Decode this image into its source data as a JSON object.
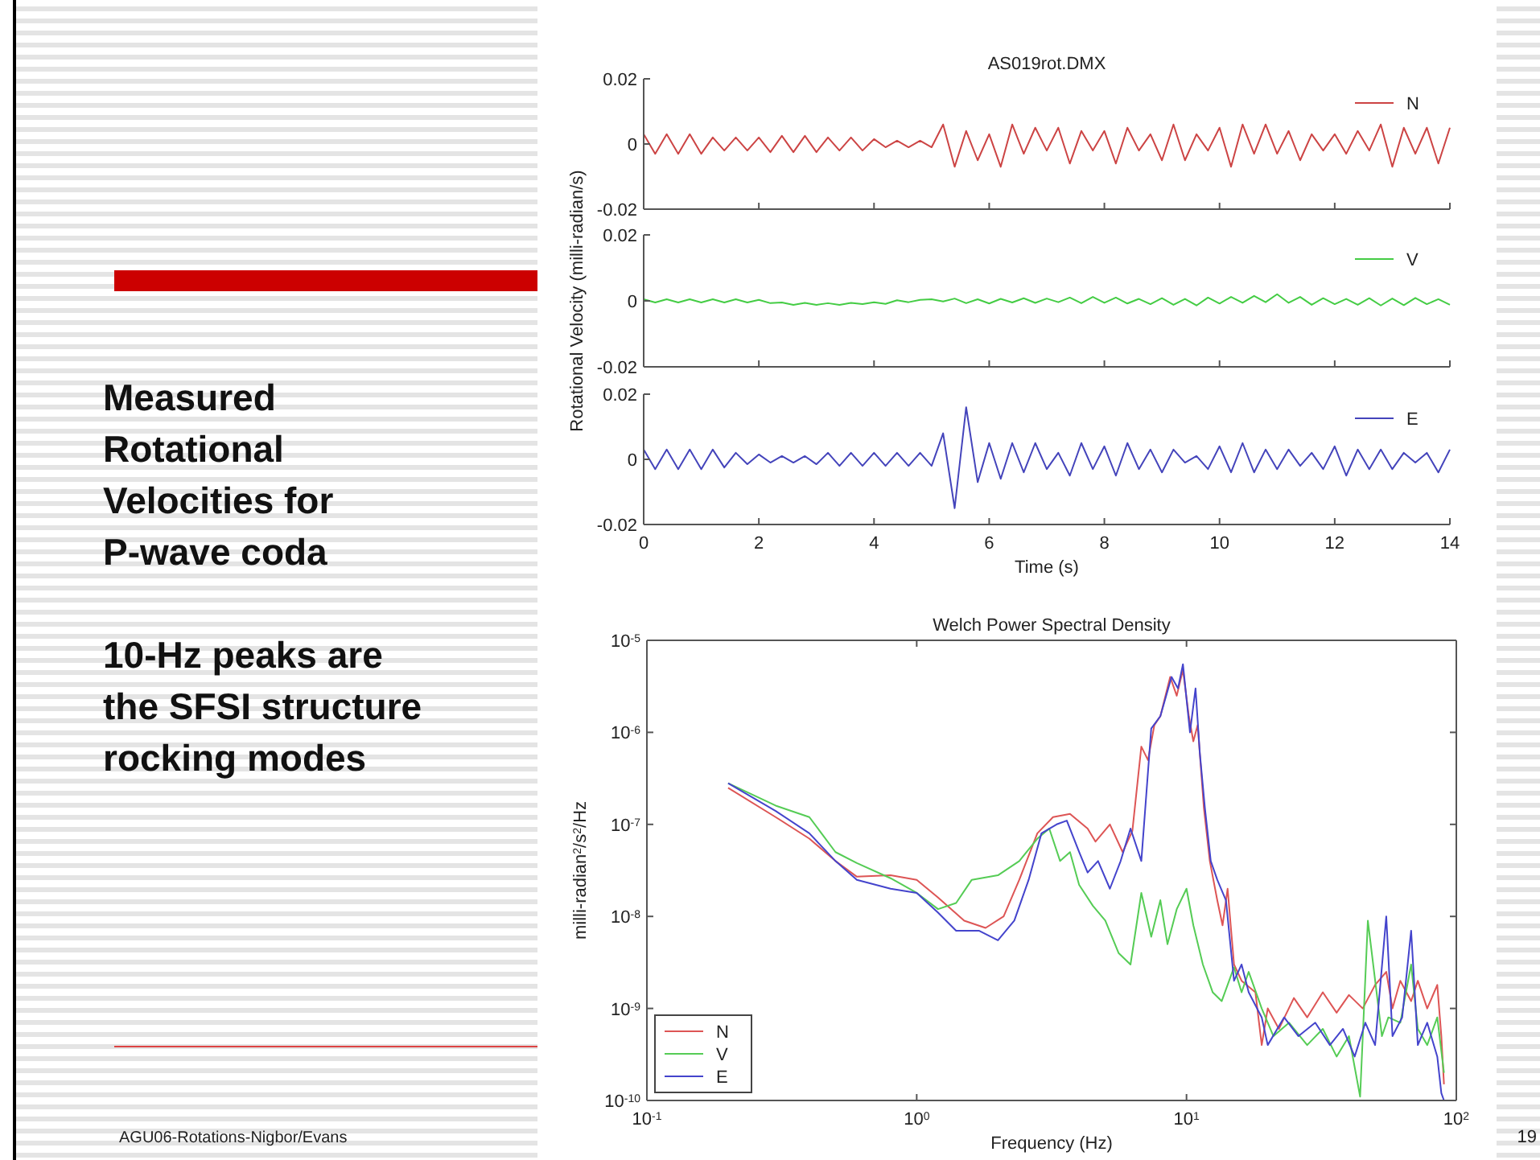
{
  "chart_data": [
    {
      "type": "line",
      "title": "AS019rot.DMX",
      "xlim": [
        0,
        14
      ],
      "xticks": [
        0,
        2,
        4,
        6,
        8,
        10,
        12,
        14
      ],
      "ylim": [
        -0.02,
        0.02
      ],
      "yticks": [
        -0.02,
        0,
        0.02
      ],
      "tick_labels": "y",
      "legend": "top right",
      "x": [
        0,
        0.2,
        0.4,
        0.6,
        0.8,
        1,
        1.2,
        1.4,
        1.6,
        1.8,
        2,
        2.2,
        2.4,
        2.6,
        2.8,
        3,
        3.2,
        3.4,
        3.6,
        3.8,
        4,
        4.2,
        4.4,
        4.6,
        4.8,
        5,
        5.2,
        5.4,
        5.6,
        5.8,
        6,
        6.2,
        6.4,
        6.6,
        6.8,
        7,
        7.2,
        7.4,
        7.6,
        7.8,
        8,
        8.2,
        8.4,
        8.6,
        8.8,
        9,
        9.2,
        9.4,
        9.6,
        9.8,
        10,
        10.2,
        10.4,
        10.6,
        10.8,
        11,
        11.2,
        11.4,
        11.6,
        11.8,
        12,
        12.2,
        12.4,
        12.6,
        12.8,
        13,
        13.2,
        13.4,
        13.6,
        13.8,
        14
      ],
      "series": [
        {
          "name": "N",
          "color": "#cc4444",
          "values": [
            0.003,
            -0.003,
            0.003,
            -0.003,
            0.003,
            -0.003,
            0.002,
            -0.002,
            0.002,
            -0.002,
            0.002,
            -0.0025,
            0.0025,
            -0.0025,
            0.0025,
            -0.0025,
            0.002,
            -0.002,
            0.002,
            -0.002,
            0.0015,
            -0.001,
            0.001,
            -0.001,
            0.001,
            -0.001,
            0.006,
            -0.007,
            0.004,
            -0.005,
            0.003,
            -0.007,
            0.006,
            -0.003,
            0.005,
            -0.002,
            0.005,
            -0.006,
            0.004,
            -0.002,
            0.004,
            -0.006,
            0.005,
            -0.002,
            0.003,
            -0.005,
            0.006,
            -0.005,
            0.003,
            -0.002,
            0.005,
            -0.007,
            0.006,
            -0.003,
            0.006,
            -0.003,
            0.004,
            -0.005,
            0.003,
            -0.002,
            0.003,
            -0.003,
            0.004,
            -0.002,
            0.006,
            -0.007,
            0.005,
            -0.003,
            0.005,
            -0.006,
            0.005
          ]
        }
      ]
    },
    {
      "type": "line",
      "ylabel": "Rotational Velocity (milli-radian/s)",
      "xlim": [
        0,
        14
      ],
      "xticks": [
        0,
        2,
        4,
        6,
        8,
        10,
        12,
        14
      ],
      "ylim": [
        -0.02,
        0.02
      ],
      "yticks": [
        -0.02,
        0,
        0.02
      ],
      "tick_labels": "y",
      "legend": "top right",
      "x": [
        0,
        0.2,
        0.4,
        0.6,
        0.8,
        1,
        1.2,
        1.4,
        1.6,
        1.8,
        2,
        2.2,
        2.4,
        2.6,
        2.8,
        3,
        3.2,
        3.4,
        3.6,
        3.8,
        4,
        4.2,
        4.4,
        4.6,
        4.8,
        5,
        5.2,
        5.4,
        5.6,
        5.8,
        6,
        6.2,
        6.4,
        6.6,
        6.8,
        7,
        7.2,
        7.4,
        7.6,
        7.8,
        8,
        8.2,
        8.4,
        8.6,
        8.8,
        9,
        9.2,
        9.4,
        9.6,
        9.8,
        10,
        10.2,
        10.4,
        10.6,
        10.8,
        11,
        11.2,
        11.4,
        11.6,
        11.8,
        12,
        12.2,
        12.4,
        12.6,
        12.8,
        13,
        13.2,
        13.4,
        13.6,
        13.8,
        14
      ],
      "series": [
        {
          "name": "V",
          "color": "#44cc44",
          "values": [
            0.0005,
            -0.0005,
            0.0005,
            -0.0005,
            0.0005,
            -0.0005,
            0.0005,
            -0.0005,
            0.0005,
            -0.0005,
            0.0003,
            -0.0007,
            -0.0005,
            -0.0012,
            -0.0006,
            -0.0012,
            -0.0007,
            -0.0012,
            -0.0006,
            -0.001,
            -0.0004,
            -0.0009,
            0.0002,
            -0.0004,
            0.0003,
            0.0005,
            -0.0002,
            0.0007,
            -0.0007,
            0.0005,
            -0.0008,
            0.0006,
            -0.0005,
            0.0008,
            -0.0006,
            0.0007,
            -0.0004,
            0.001,
            -0.0007,
            0.0012,
            -0.0006,
            0.001,
            -0.0008,
            0.0006,
            -0.001,
            0.0008,
            -0.0012,
            0.0006,
            -0.0014,
            0.001,
            -0.0008,
            0.0012,
            -0.0006,
            0.0015,
            -0.0004,
            0.002,
            -0.0006,
            0.0012,
            -0.0012,
            0.0008,
            -0.001,
            0.0006,
            -0.0012,
            0.0008,
            -0.0014,
            0.0007,
            -0.0013,
            0.0009,
            -0.001,
            0.0005,
            -0.0012
          ]
        }
      ]
    },
    {
      "type": "line",
      "xlabel": "Time (s)",
      "xlim": [
        0,
        14
      ],
      "xticks": [
        0,
        2,
        4,
        6,
        8,
        10,
        12,
        14
      ],
      "ylim": [
        -0.02,
        0.02
      ],
      "yticks": [
        -0.02,
        0,
        0.02
      ],
      "legend": "top right",
      "x": [
        0,
        0.2,
        0.4,
        0.6,
        0.8,
        1,
        1.2,
        1.4,
        1.6,
        1.8,
        2,
        2.2,
        2.4,
        2.6,
        2.8,
        3,
        3.2,
        3.4,
        3.6,
        3.8,
        4,
        4.2,
        4.4,
        4.6,
        4.8,
        5,
        5.2,
        5.4,
        5.6,
        5.8,
        6,
        6.2,
        6.4,
        6.6,
        6.8,
        7,
        7.2,
        7.4,
        7.6,
        7.8,
        8,
        8.2,
        8.4,
        8.6,
        8.8,
        9,
        9.2,
        9.4,
        9.6,
        9.8,
        10,
        10.2,
        10.4,
        10.6,
        10.8,
        11,
        11.2,
        11.4,
        11.6,
        11.8,
        12,
        12.2,
        12.4,
        12.6,
        12.8,
        13,
        13.2,
        13.4,
        13.6,
        13.8,
        14
      ],
      "series": [
        {
          "name": "E",
          "color": "#4444bb",
          "values": [
            0.003,
            -0.003,
            0.003,
            -0.003,
            0.003,
            -0.003,
            0.003,
            -0.0025,
            0.002,
            -0.0015,
            0.0015,
            -0.001,
            0.001,
            -0.001,
            0.001,
            -0.0015,
            0.002,
            -0.002,
            0.002,
            -0.002,
            0.002,
            -0.002,
            0.002,
            -0.002,
            0.002,
            -0.002,
            0.008,
            -0.015,
            0.016,
            -0.007,
            0.005,
            -0.006,
            0.005,
            -0.004,
            0.005,
            -0.003,
            0.002,
            -0.005,
            0.005,
            -0.003,
            0.004,
            -0.005,
            0.005,
            -0.003,
            0.003,
            -0.004,
            0.003,
            -0.001,
            0.001,
            -0.003,
            0.004,
            -0.004,
            0.005,
            -0.004,
            0.003,
            -0.003,
            0.003,
            -0.002,
            0.002,
            -0.003,
            0.004,
            -0.005,
            0.003,
            -0.003,
            0.003,
            -0.003,
            0.002,
            -0.001,
            0.002,
            -0.004,
            0.003
          ]
        }
      ]
    },
    {
      "type": "line",
      "title": "Welch Power Spectral Density",
      "xlabel": "Frequency (Hz)",
      "ylabel": "milli-radian$^{2}$/s$^{2}$/Hz",
      "log": "xy",
      "legend": "bottom left",
      "xlim": [
        0.1,
        100
      ],
      "xticks": [
        {
          "value": 0.1,
          "label": "10$^{-1}$"
        },
        {
          "value": 1,
          "label": "10$^{0}$"
        },
        {
          "value": 10,
          "label": "10$^{1}$"
        },
        {
          "value": 100,
          "label": "10$^{2}$"
        }
      ],
      "ylim": [
        1e-10,
        1e-05
      ],
      "yticks": [
        {
          "value": 1e-10,
          "label": "10$^{-10}$"
        },
        {
          "value": 1e-09,
          "label": "10$^{-9}$"
        },
        {
          "value": 1e-08,
          "label": "10$^{-8}$"
        },
        {
          "value": 1e-07,
          "label": "10$^{-7}$"
        },
        {
          "value": 1e-06,
          "label": "10$^{-6}$"
        },
        {
          "value": 1e-05,
          "label": "10$^{-5}$"
        }
      ],
      "series": [
        {
          "name": "N",
          "color": "#dd5555",
          "x": [
            0.2,
            0.3,
            0.4,
            0.5,
            0.6,
            0.8,
            1,
            1.2,
            1.5,
            1.8,
            2.1,
            2.4,
            2.8,
            3.2,
            3.7,
            4.3,
            4.6,
            5.2,
            5.8,
            6.3,
            6.8,
            7.2,
            7.6,
            8,
            8.7,
            9.2,
            9.7,
            10.2,
            10.6,
            11,
            11.6,
            12.2,
            13,
            13.6,
            14.2,
            15,
            16,
            18,
            19,
            20,
            22,
            25,
            28,
            32,
            36,
            40,
            45,
            50,
            55,
            58,
            62,
            68,
            72,
            78,
            85,
            88,
            90
          ],
          "values": [
            2.5e-07,
            1.2e-07,
            7e-08,
            4e-08,
            2.7e-08,
            2.8e-08,
            2.5e-08,
            1.6e-08,
            9e-09,
            7.5e-09,
            1e-08,
            2.5e-08,
            8e-08,
            1.2e-07,
            1.3e-07,
            9e-08,
            6.5e-08,
            1e-07,
            5e-08,
            8.5e-08,
            7e-07,
            5e-07,
            1.2e-06,
            1.5e-06,
            4e-06,
            2.5e-06,
            4.8e-06,
            1.5e-06,
            8e-07,
            1.2e-06,
            1.5e-07,
            4e-08,
            1.5e-08,
            8e-09,
            2e-08,
            3e-09,
            2e-09,
            1.5e-09,
            4e-10,
            1e-09,
            6e-10,
            1.3e-09,
            8e-10,
            1.5e-09,
            9e-10,
            1.4e-09,
            1e-09,
            1.8e-09,
            2.5e-09,
            1e-09,
            2e-09,
            1.2e-09,
            2e-09,
            1e-09,
            1.8e-09,
            5e-10,
            1.5e-10
          ]
        },
        {
          "name": "V",
          "color": "#55cc55",
          "x": [
            0.2,
            0.3,
            0.4,
            0.5,
            0.6,
            0.8,
            1,
            1.2,
            1.4,
            1.6,
            2,
            2.4,
            2.8,
            3.1,
            3.4,
            3.7,
            4,
            4.5,
            5,
            5.6,
            6.2,
            6.8,
            7.4,
            8,
            8.5,
            9.2,
            10,
            10.6,
            11.5,
            12.5,
            13.5,
            15,
            16,
            17,
            19,
            21,
            24,
            28,
            32,
            36,
            40,
            44,
            47,
            53,
            56,
            62,
            68,
            72,
            78,
            85,
            90
          ],
          "values": [
            2.8e-07,
            1.6e-07,
            1.2e-07,
            5e-08,
            3.8e-08,
            2.6e-08,
            1.8e-08,
            1.2e-08,
            1.4e-08,
            2.5e-08,
            2.8e-08,
            4e-08,
            7e-08,
            9e-08,
            4e-08,
            5e-08,
            2.2e-08,
            1.3e-08,
            9e-09,
            4e-09,
            3e-09,
            1.8e-08,
            6e-09,
            1.5e-08,
            5e-09,
            1.2e-08,
            2e-08,
            8e-09,
            3e-09,
            1.5e-09,
            1.2e-09,
            2.8e-09,
            1.5e-09,
            2.5e-09,
            1e-09,
            5e-10,
            7e-10,
            4e-10,
            6e-10,
            3e-10,
            5e-10,
            1.1e-10,
            9e-09,
            5e-10,
            8e-10,
            7e-10,
            3e-09,
            6e-10,
            4e-10,
            8e-10,
            2e-10
          ]
        },
        {
          "name": "E",
          "color": "#4444cc",
          "x": [
            0.2,
            0.3,
            0.4,
            0.5,
            0.6,
            0.8,
            1,
            1.2,
            1.4,
            1.7,
            2,
            2.3,
            2.6,
            2.9,
            3.3,
            3.6,
            4,
            4.3,
            4.7,
            5.2,
            5.7,
            6.2,
            6.8,
            7.4,
            8,
            8.8,
            9.3,
            9.7,
            10.3,
            10.8,
            11.2,
            11.7,
            12.3,
            13,
            14,
            15,
            16,
            17,
            19,
            20,
            23,
            26,
            30,
            34,
            38,
            42,
            46,
            50,
            55,
            58,
            63,
            68,
            72,
            78,
            85,
            88,
            90
          ],
          "values": [
            2.8e-07,
            1.4e-07,
            8e-08,
            4e-08,
            2.5e-08,
            2e-08,
            1.8e-08,
            1.1e-08,
            7e-09,
            7e-09,
            5.5e-09,
            9e-09,
            2.5e-08,
            8e-08,
            1e-07,
            1.1e-07,
            5e-08,
            3e-08,
            4e-08,
            2e-08,
            4e-08,
            9e-08,
            4e-08,
            1.1e-06,
            1.5e-06,
            4e-06,
            3e-06,
            5.5e-06,
            1e-06,
            3e-06,
            6e-07,
            1.5e-07,
            4e-08,
            2.5e-08,
            1.5e-08,
            2e-09,
            3e-09,
            1.5e-09,
            8e-10,
            4e-10,
            8e-10,
            5e-10,
            7e-10,
            4e-10,
            6e-10,
            3e-10,
            7e-10,
            4e-10,
            1e-08,
            5e-10,
            8e-10,
            7e-09,
            4e-10,
            7e-10,
            3e-10,
            1.2e-10,
            1e-10
          ]
        }
      ]
    },
    {
      "type": "other",
      "annotations": [
        "Measured Rotational Velocities for P-wave coda",
        "10-Hz peaks are the SFSI structure rocking modes",
        "AGU06-Rotations-Nigbor/Evans",
        "19"
      ]
    }
  ]
}
